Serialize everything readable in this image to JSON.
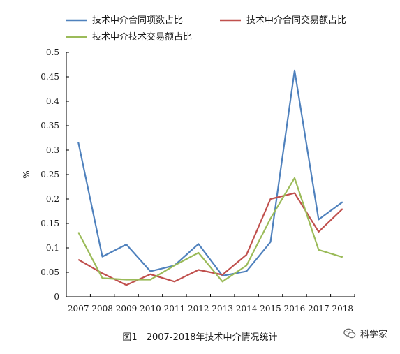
{
  "chart_data": {
    "type": "line",
    "x": [
      "2007",
      "2008",
      "2009",
      "2010",
      "2011",
      "2012",
      "2013",
      "2014",
      "2015",
      "2016",
      "2017",
      "2018"
    ],
    "ylabel": "%",
    "ylim": [
      0,
      0.5
    ],
    "yticks": [
      "0",
      "0.05",
      "0.1",
      "0.15",
      "0.2",
      "0.25",
      "0.3",
      "0.35",
      "0.4",
      "0.45",
      "0.5"
    ],
    "grid": false,
    "legend_position": "top",
    "series": [
      {
        "name": "技术中介合同项数占比",
        "color": "#4f81bd",
        "values": [
          0.316,
          0.082,
          0.107,
          0.052,
          0.064,
          0.108,
          0.043,
          0.052,
          0.112,
          0.463,
          0.158,
          0.194
        ]
      },
      {
        "name": "技术中介合同交易额占比",
        "color": "#c0504d",
        "values": [
          0.076,
          0.048,
          0.024,
          0.046,
          0.031,
          0.055,
          0.045,
          0.086,
          0.2,
          0.212,
          0.133,
          0.18
        ]
      },
      {
        "name": "技术中介技术交易额占比",
        "color": "#9bbb59",
        "values": [
          0.132,
          0.038,
          0.035,
          0.035,
          0.064,
          0.09,
          0.031,
          0.064,
          0.16,
          0.243,
          0.096,
          0.081
        ]
      }
    ]
  },
  "caption": "图1　2007-2018年技术中介情况统计",
  "watermark": {
    "text": "科学家",
    "icon": "wechat-icon"
  }
}
